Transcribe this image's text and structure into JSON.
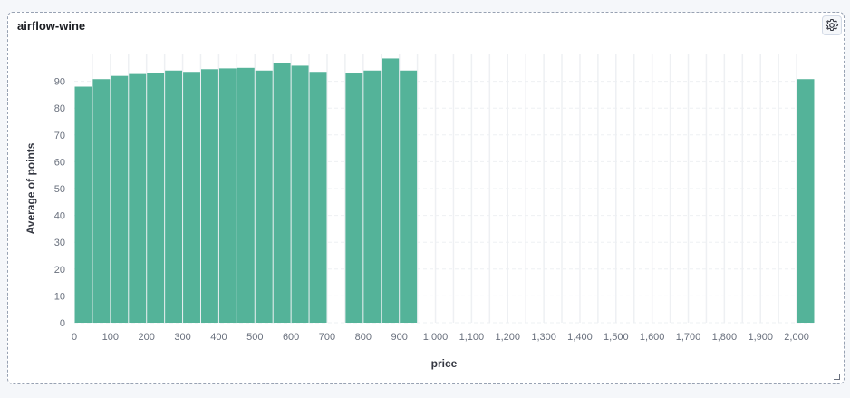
{
  "panel": {
    "title": "airflow-wine",
    "settings_icon": "gear-icon",
    "resize_icon": "resize-handle-icon"
  },
  "colors": {
    "bar": "#54b399",
    "grid": "#eef0f3",
    "slot": "#f3f4f6"
  },
  "chart_data": {
    "type": "bar",
    "title": "",
    "xlabel": "price",
    "ylabel": "Average of points",
    "xlim": [
      0,
      2050
    ],
    "ylim": [
      0,
      100
    ],
    "bin_width": 50,
    "x_ticks": [
      0,
      100,
      200,
      300,
      400,
      500,
      600,
      700,
      800,
      900,
      1000,
      1100,
      1200,
      1300,
      1400,
      1500,
      1600,
      1700,
      1800,
      1900,
      2000
    ],
    "x_tick_labels": [
      "0",
      "100",
      "200",
      "300",
      "400",
      "500",
      "600",
      "700",
      "800",
      "900",
      "1,000",
      "1,100",
      "1,200",
      "1,300",
      "1,400",
      "1,500",
      "1,600",
      "1,700",
      "1,800",
      "1,900",
      "2,000"
    ],
    "y_ticks": [
      0,
      10,
      20,
      30,
      40,
      50,
      60,
      70,
      80,
      90
    ],
    "y_tick_labels": [
      "0",
      "10",
      "20",
      "30",
      "40",
      "50",
      "60",
      "70",
      "80",
      "90"
    ],
    "grid": true,
    "series": [
      {
        "x": [
          0,
          50,
          100,
          150,
          200,
          250,
          300,
          350,
          400,
          450,
          500,
          550,
          600,
          650,
          750,
          800,
          850,
          900,
          2000
        ],
        "values": [
          88,
          90.8,
          92,
          92.7,
          93,
          94,
          93.5,
          94.5,
          94.8,
          95,
          94,
          96.7,
          95.8,
          93.5,
          92.9,
          94,
          98.5,
          94,
          90.8
        ]
      }
    ]
  }
}
